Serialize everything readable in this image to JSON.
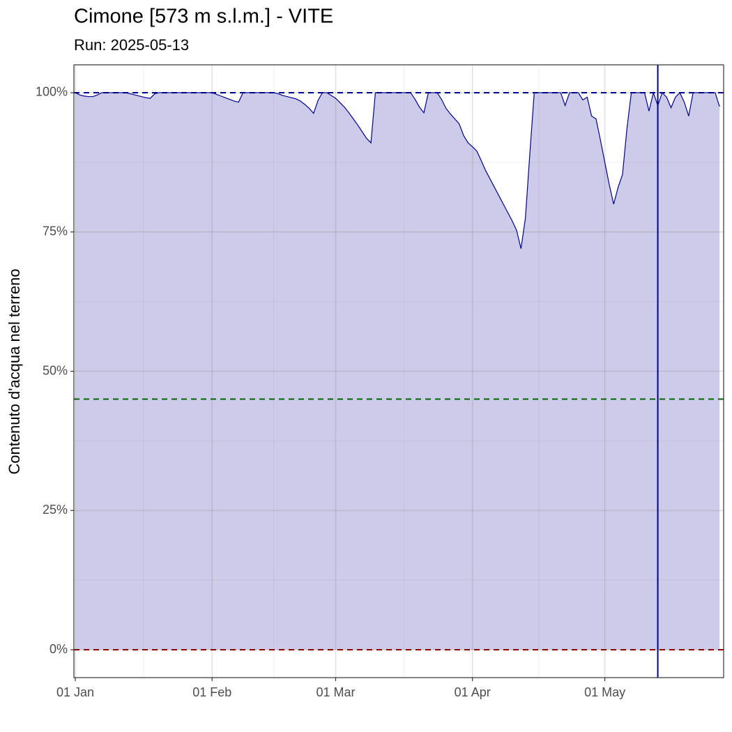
{
  "chart_data": {
    "type": "area",
    "title": "Cimone [573 m s.l.m.] - VITE",
    "subtitle": "Run: 2025-05-13",
    "y_label": "Contenuto d'acqua nel terreno",
    "x": [
      "01 Jan",
      "02 Jan",
      "03 Jan",
      "04 Jan",
      "05 Jan",
      "06 Jan",
      "07 Jan",
      "08 Jan",
      "09 Jan",
      "10 Jan",
      "11 Jan",
      "12 Jan",
      "13 Jan",
      "14 Jan",
      "15 Jan",
      "16 Jan",
      "17 Jan",
      "18 Jan",
      "19 Jan",
      "20 Jan",
      "21 Jan",
      "22 Jan",
      "23 Jan",
      "24 Jan",
      "25 Jan",
      "26 Jan",
      "27 Jan",
      "28 Jan",
      "29 Jan",
      "30 Jan",
      "31 Jan",
      "01 Feb",
      "02 Feb",
      "03 Feb",
      "04 Feb",
      "05 Feb",
      "06 Feb",
      "07 Feb",
      "08 Feb",
      "09 Feb",
      "10 Feb",
      "11 Feb",
      "12 Feb",
      "13 Feb",
      "14 Feb",
      "15 Feb",
      "16 Feb",
      "17 Feb",
      "18 Feb",
      "19 Feb",
      "20 Feb",
      "21 Feb",
      "22 Feb",
      "23 Feb",
      "24 Feb",
      "25 Feb",
      "26 Feb",
      "27 Feb",
      "28 Feb",
      "01 Mar",
      "02 Mar",
      "03 Mar",
      "04 Mar",
      "05 Mar",
      "06 Mar",
      "07 Mar",
      "08 Mar",
      "09 Mar",
      "10 Mar",
      "11 Mar",
      "12 Mar",
      "13 Mar",
      "14 Mar",
      "15 Mar",
      "16 Mar",
      "17 Mar",
      "18 Mar",
      "19 Mar",
      "20 Mar",
      "21 Mar",
      "22 Mar",
      "23 Mar",
      "24 Mar",
      "25 Mar",
      "26 Mar",
      "27 Mar",
      "28 Mar",
      "29 Mar",
      "30 Mar",
      "31 Mar",
      "01 Apr",
      "02 Apr",
      "03 Apr",
      "04 Apr",
      "05 Apr",
      "06 Apr",
      "07 Apr",
      "08 Apr",
      "09 Apr",
      "10 Apr",
      "11 Apr",
      "12 Apr",
      "13 Apr",
      "14 Apr",
      "15 Apr",
      "16 Apr",
      "17 Apr",
      "18 Apr",
      "19 Apr",
      "20 Apr",
      "21 Apr",
      "22 Apr",
      "23 Apr",
      "24 Apr",
      "25 Apr",
      "26 Apr",
      "27 Apr",
      "28 Apr",
      "29 Apr",
      "30 Apr",
      "01 May",
      "02 May",
      "03 May",
      "04 May",
      "05 May",
      "06 May",
      "07 May",
      "08 May",
      "09 May",
      "10 May",
      "11 May",
      "12 May",
      "13 May",
      "14 May",
      "15 May",
      "16 May",
      "17 May",
      "18 May",
      "19 May",
      "20 May",
      "21 May",
      "22 May",
      "23 May",
      "24 May",
      "25 May",
      "26 May",
      "27 May"
    ],
    "series": [
      {
        "color": "#00008b",
        "fill": "#ccccea",
        "values": [
          100,
          99.6,
          99.4,
          99.3,
          99.3,
          99.6,
          100,
          100,
          100,
          100,
          100,
          100,
          99.9,
          99.7,
          99.5,
          99.3,
          99.1,
          99,
          99.8,
          100,
          100,
          100,
          100,
          100,
          100,
          100,
          100,
          100,
          100,
          100,
          100,
          100,
          99.7,
          99.4,
          99.1,
          98.8,
          98.5,
          98.3,
          100,
          100,
          100,
          100,
          100,
          100,
          100,
          100,
          99.8,
          99.5,
          99.3,
          99.1,
          98.9,
          98.5,
          97.9,
          97.2,
          96.3,
          98.6,
          100,
          100,
          99.5,
          99,
          98.2,
          97.4,
          96.4,
          95.3,
          94.2,
          93,
          91.8,
          91,
          100,
          100,
          100,
          100,
          100,
          100,
          100,
          100,
          100,
          98.8,
          97.4,
          96.4,
          100,
          100,
          100,
          98.8,
          97.2,
          96.2,
          95.3,
          94.4,
          92.3,
          91,
          90.3,
          89.5,
          87.8,
          86,
          84.5,
          83,
          81.5,
          80,
          78.5,
          77,
          75.3,
          72,
          77.5,
          89,
          100,
          100,
          100,
          100,
          100,
          100,
          100,
          97.7,
          100,
          100,
          100,
          98.7,
          99.2,
          95.8,
          95.3,
          91.5,
          87.5,
          83.5,
          80,
          83,
          85.3,
          93.5,
          100,
          100,
          100,
          100,
          96.7,
          100,
          97.7,
          100,
          99.2,
          97.3,
          99.2,
          100,
          98.3,
          95.8,
          100,
          100,
          100,
          100,
          100,
          100,
          97.5
        ]
      }
    ],
    "ylim": [
      -5,
      105
    ],
    "yticks": [
      {
        "value": 0,
        "label": "0%"
      },
      {
        "value": 25,
        "label": "25%"
      },
      {
        "value": 50,
        "label": "50%"
      },
      {
        "value": 75,
        "label": "75%"
      },
      {
        "value": 100,
        "label": "100%"
      }
    ],
    "xticks": [
      "01 Jan",
      "01 Feb",
      "01 Mar",
      "01 Apr",
      "01 May"
    ],
    "grid": true,
    "reference_lines": [
      {
        "value": 100,
        "color": "#00008b"
      },
      {
        "value": 45,
        "color": "#006400"
      },
      {
        "value": 0,
        "color": "#8b0000"
      }
    ],
    "run_line": {
      "x": "13 May",
      "color": "#00008b"
    }
  }
}
